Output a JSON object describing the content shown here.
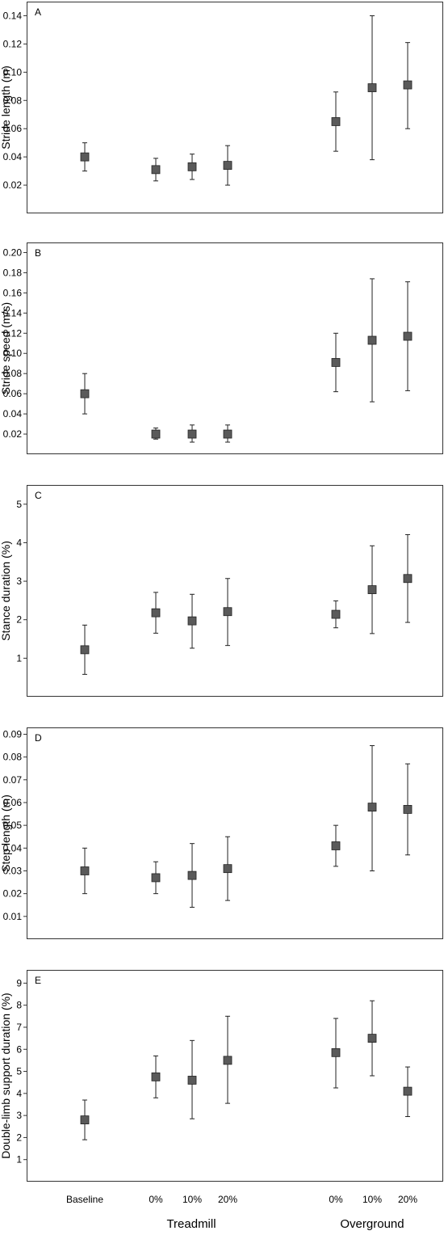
{
  "chart_data": [
    {
      "type": "scatter",
      "panel": "A",
      "ylabel": "Stride length (m)",
      "yticks": [
        "0.02",
        "0.04",
        "0.06",
        "0.08",
        "0.10",
        "0.12",
        "0.14"
      ],
      "ylim": [
        0.0,
        0.15
      ],
      "categories": [
        "Baseline",
        "0%",
        "10%",
        "20%",
        "0%",
        "10%",
        "20%"
      ],
      "values": [
        0.04,
        0.031,
        0.033,
        0.034,
        0.065,
        0.089,
        0.091
      ],
      "err_low": [
        0.03,
        0.023,
        0.024,
        0.02,
        0.044,
        0.038,
        0.06
      ],
      "err_high": [
        0.05,
        0.039,
        0.042,
        0.048,
        0.086,
        0.14,
        0.121
      ]
    },
    {
      "type": "scatter",
      "panel": "B",
      "ylabel": "Stride speed (m/s)",
      "yticks": [
        "0.02",
        "0.04",
        "0.06",
        "0.08",
        "0.10",
        "0.12",
        "0.14",
        "0.16",
        "0.18",
        "0.20"
      ],
      "ylim": [
        0.0,
        0.21
      ],
      "categories": [
        "Baseline",
        "0%",
        "10%",
        "20%",
        "0%",
        "10%",
        "20%"
      ],
      "values": [
        0.06,
        0.02,
        0.02,
        0.02,
        0.091,
        0.113,
        0.117
      ],
      "err_low": [
        0.04,
        0.015,
        0.012,
        0.012,
        0.062,
        0.052,
        0.063
      ],
      "err_high": [
        0.08,
        0.026,
        0.029,
        0.029,
        0.12,
        0.174,
        0.171
      ]
    },
    {
      "type": "scatter",
      "panel": "C",
      "ylabel": "Stance duration (%)",
      "yticks": [
        "1",
        "2",
        "3",
        "4",
        "5"
      ],
      "ylim": [
        0.0,
        5.5
      ],
      "categories": [
        "Baseline",
        "0%",
        "10%",
        "20%",
        "0%",
        "10%",
        "20%"
      ],
      "values": [
        1.22,
        2.18,
        1.97,
        2.21,
        2.14,
        2.78,
        3.07
      ],
      "err_low": [
        0.58,
        1.65,
        1.26,
        1.33,
        1.79,
        1.64,
        1.93
      ],
      "err_high": [
        1.86,
        2.71,
        2.66,
        3.07,
        2.49,
        3.92,
        4.21
      ]
    },
    {
      "type": "scatter",
      "panel": "D",
      "ylabel": "Step length (m)",
      "yticks": [
        "0.01",
        "0.02",
        "0.03",
        "0.04",
        "0.05",
        "0.06",
        "0.07",
        "0.08",
        "0.09"
      ],
      "ylim": [
        0.0,
        0.093
      ],
      "categories": [
        "Baseline",
        "0%",
        "10%",
        "20%",
        "0%",
        "10%",
        "20%"
      ],
      "values": [
        0.03,
        0.027,
        0.028,
        0.031,
        0.041,
        0.058,
        0.057
      ],
      "err_low": [
        0.02,
        0.02,
        0.014,
        0.017,
        0.032,
        0.03,
        0.037
      ],
      "err_high": [
        0.04,
        0.034,
        0.042,
        0.045,
        0.05,
        0.085,
        0.077
      ]
    },
    {
      "type": "scatter",
      "panel": "E",
      "ylabel": "Double-limb support duration (%)",
      "yticks": [
        "1",
        "2",
        "3",
        "4",
        "5",
        "6",
        "7",
        "8",
        "9"
      ],
      "ylim": [
        0.0,
        9.6
      ],
      "categories": [
        "Baseline",
        "0%",
        "10%",
        "20%",
        "0%",
        "10%",
        "20%"
      ],
      "values": [
        2.8,
        4.75,
        4.6,
        5.5,
        5.85,
        6.5,
        4.1
      ],
      "err_low": [
        1.9,
        3.8,
        2.85,
        3.55,
        4.25,
        4.8,
        2.95
      ],
      "err_high": [
        3.7,
        5.7,
        6.4,
        7.5,
        7.4,
        8.2,
        5.2
      ]
    }
  ],
  "x_axis": {
    "category_labels": [
      "Baseline",
      "0%",
      "10%",
      "20%",
      "0%",
      "10%",
      "20%"
    ],
    "group_labels": [
      "Treadmill",
      "Overground"
    ]
  },
  "colors": {
    "marker_fill": "#5a5a5a",
    "marker_stroke": "#222222",
    "error_bar": "#222222",
    "frame": "#333333"
  }
}
